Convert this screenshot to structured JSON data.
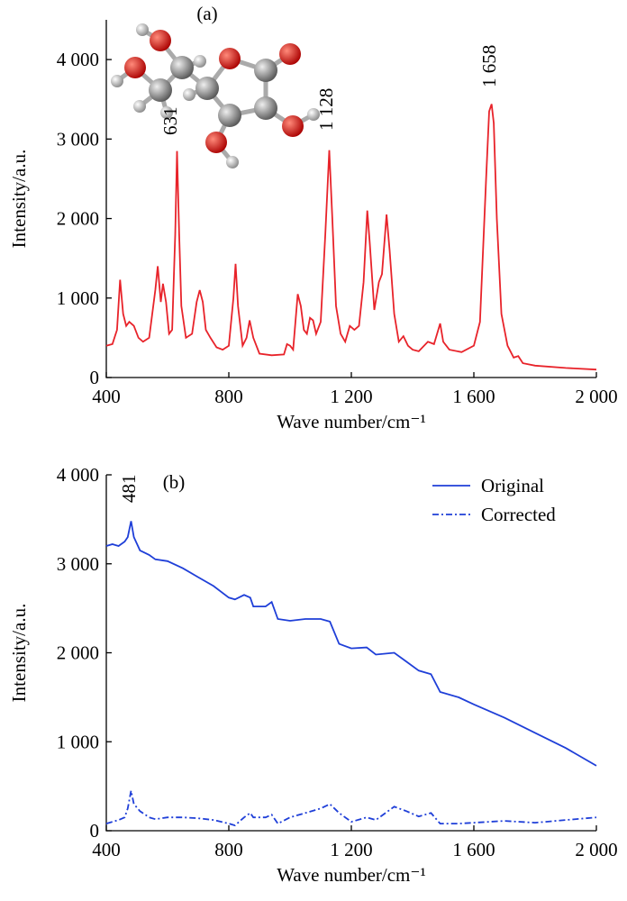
{
  "chart_data": [
    {
      "type": "line",
      "x_label": "Wave number/cm⁻¹",
      "y_label": "Intensity/a.u.",
      "annotations": [
        "(a)",
        "631",
        "1 128",
        "1 658"
      ],
      "x": [
        400,
        420,
        435,
        445,
        455,
        465,
        475,
        490,
        505,
        520,
        540,
        560,
        568,
        578,
        585,
        595,
        605,
        615,
        625,
        631,
        638,
        645,
        660,
        680,
        695,
        705,
        715,
        725,
        740,
        760,
        780,
        800,
        815,
        822,
        830,
        845,
        858,
        868,
        880,
        900,
        940,
        980,
        990,
        1000,
        1010,
        1025,
        1035,
        1045,
        1055,
        1065,
        1075,
        1085,
        1100,
        1115,
        1128,
        1138,
        1150,
        1165,
        1180,
        1195,
        1210,
        1225,
        1240,
        1252,
        1260,
        1275,
        1290,
        1300,
        1315,
        1325,
        1340,
        1355,
        1370,
        1385,
        1400,
        1420,
        1450,
        1470,
        1490,
        1500,
        1520,
        1560,
        1600,
        1620,
        1640,
        1650,
        1658,
        1665,
        1675,
        1690,
        1710,
        1730,
        1745,
        1760,
        1800,
        1900,
        2000
      ],
      "series": [
        {
          "name": "a",
          "color": "#e8232a",
          "values": [
            400,
            420,
            600,
            1230,
            800,
            650,
            700,
            650,
            500,
            450,
            500,
            1100,
            1400,
            950,
            1180,
            950,
            550,
            600,
            1800,
            2850,
            1800,
            900,
            500,
            550,
            950,
            1100,
            950,
            600,
            500,
            380,
            350,
            400,
            1000,
            1430,
            900,
            400,
            500,
            720,
            500,
            300,
            280,
            290,
            420,
            400,
            350,
            1050,
            900,
            600,
            550,
            750,
            720,
            550,
            700,
            1800,
            2860,
            2000,
            900,
            550,
            450,
            650,
            600,
            650,
            1200,
            2100,
            1700,
            850,
            1200,
            1300,
            2050,
            1600,
            800,
            450,
            520,
            400,
            350,
            330,
            450,
            420,
            680,
            450,
            350,
            320,
            400,
            700,
            2500,
            3350,
            3440,
            3200,
            2000,
            800,
            400,
            250,
            270,
            180,
            150,
            120,
            100
          ]
        }
      ],
      "xlim": [
        400,
        2000
      ],
      "xticks": [
        400,
        800,
        {
          "value": 1200,
          "label": "1 200"
        },
        {
          "value": 1600,
          "label": "1 600"
        },
        {
          "value": 2000,
          "label": "2 000"
        }
      ],
      "ylim": [
        0,
        4500
      ],
      "yticks": [
        0,
        {
          "value": 1000,
          "label": "1 000"
        },
        {
          "value": 2000,
          "label": "2 000"
        },
        {
          "value": 3000,
          "label": "3 000"
        },
        {
          "value": 4000,
          "label": "4 000"
        }
      ],
      "grid": false,
      "legend": null
    },
    {
      "type": "line",
      "x_label": "Wave number/cm⁻¹",
      "y_label": "Intensity/a.u.",
      "annotations": [
        "(b)",
        "481"
      ],
      "x": [
        400,
        420,
        440,
        460,
        470,
        481,
        490,
        510,
        540,
        560,
        600,
        650,
        700,
        750,
        800,
        820,
        850,
        870,
        880,
        920,
        940,
        960,
        1000,
        1050,
        1100,
        1130,
        1160,
        1200,
        1250,
        1280,
        1340,
        1380,
        1420,
        1460,
        1490,
        1550,
        1600,
        1700,
        1800,
        1900,
        2000
      ],
      "series": [
        {
          "name": "Original",
          "color": "#1f3fd8",
          "dash": "solid",
          "values": [
            3200,
            3220,
            3200,
            3250,
            3300,
            3480,
            3300,
            3150,
            3100,
            3050,
            3030,
            2950,
            2850,
            2750,
            2620,
            2600,
            2650,
            2620,
            2520,
            2520,
            2570,
            2380,
            2360,
            2380,
            2380,
            2350,
            2100,
            2050,
            2060,
            1980,
            2000,
            1900,
            1800,
            1760,
            1560,
            1500,
            1420,
            1270,
            1100,
            930,
            730
          ]
        },
        {
          "name": "Corrected",
          "color": "#1f3fd8",
          "dash": "dashdot",
          "values": [
            80,
            100,
            120,
            150,
            250,
            450,
            300,
            220,
            150,
            130,
            150,
            150,
            140,
            120,
            80,
            60,
            150,
            200,
            150,
            150,
            180,
            80,
            150,
            200,
            250,
            300,
            200,
            100,
            150,
            120,
            270,
            220,
            160,
            200,
            80,
            80,
            90,
            110,
            90,
            120,
            150
          ]
        }
      ],
      "xlim": [
        400,
        2000
      ],
      "xticks": [
        400,
        800,
        {
          "value": 1200,
          "label": "1 200"
        },
        {
          "value": 1600,
          "label": "1 600"
        },
        {
          "value": 2000,
          "label": "2 000"
        }
      ],
      "ylim": [
        0,
        4000
      ],
      "yticks": [
        0,
        {
          "value": 1000,
          "label": "1 000"
        },
        {
          "value": 2000,
          "label": "2 000"
        },
        {
          "value": 3000,
          "label": "3 000"
        },
        {
          "value": 4000,
          "label": "4 000"
        }
      ],
      "grid": false,
      "legend": "upper right"
    }
  ]
}
